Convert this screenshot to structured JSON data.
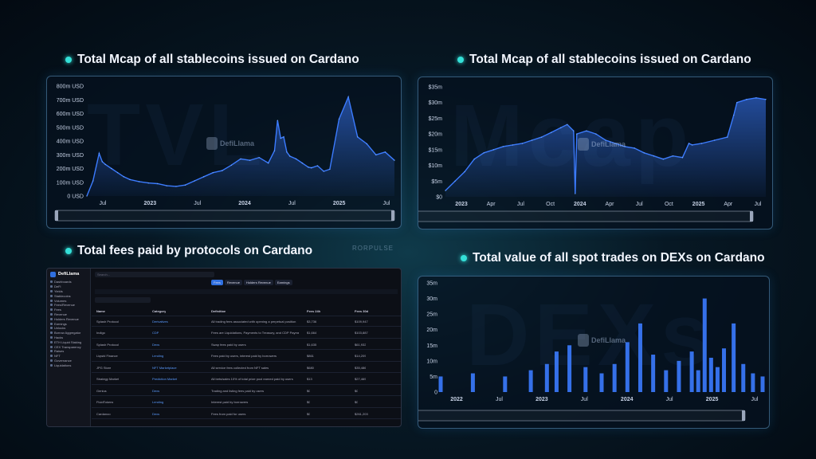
{
  "titles": {
    "tl": "Total Mcap of all stablecoins issued on Cardano",
    "tr": "Total Mcap of all stablecoins issued on Cardano",
    "bl": "Total fees paid by protocols on Cardano",
    "br": "Total value of all spot trades on DEXs on Cardano"
  },
  "watermark": "DefiLlama",
  "center_logo": "RORPULSE",
  "chart_data": [
    {
      "type": "area",
      "y_ticks": [
        "800m USD",
        "700m USD",
        "600m USD",
        "500m USD",
        "400m USD",
        "300m USD",
        "200m USD",
        "100m USD",
        "0 USD"
      ],
      "x_ticks": [
        "Jul",
        "2023",
        "Jul",
        "2024",
        "Jul",
        "2025",
        "Jul"
      ],
      "ylim": [
        0,
        800
      ],
      "x": [
        0,
        2,
        4,
        5,
        6,
        8,
        10,
        12,
        14,
        17,
        20,
        23,
        26,
        29,
        32,
        35,
        38,
        41,
        44,
        47,
        50,
        53,
        56,
        59,
        61,
        62,
        63,
        64,
        65,
        66,
        68,
        70,
        72,
        73,
        75,
        77,
        79,
        82,
        85,
        88,
        91,
        94,
        97,
        100
      ],
      "values": [
        0,
        110,
        310,
        250,
        230,
        200,
        170,
        140,
        120,
        105,
        95,
        90,
        75,
        70,
        80,
        110,
        140,
        170,
        185,
        225,
        270,
        260,
        280,
        240,
        330,
        550,
        420,
        430,
        320,
        290,
        270,
        240,
        210,
        205,
        220,
        180,
        195,
        560,
        720,
        430,
        380,
        300,
        320,
        260
      ],
      "color": "#3b7bff"
    },
    {
      "type": "area",
      "y_ticks": [
        "$35m",
        "$30m",
        "$25m",
        "$20m",
        "$15m",
        "$10m",
        "$5m",
        "$0"
      ],
      "x_ticks": [
        "2023",
        "Apr",
        "Jul",
        "Oct",
        "2024",
        "Apr",
        "Jul",
        "Oct",
        "2025",
        "Apr",
        "Jul"
      ],
      "ylim": [
        0,
        35
      ],
      "x": [
        0,
        3,
        6,
        9,
        12,
        15,
        18,
        21,
        24,
        27,
        30,
        33,
        36,
        38,
        40,
        40.5,
        41,
        44,
        47,
        50,
        53,
        56,
        59,
        62,
        65,
        68,
        71,
        74,
        76,
        77,
        80,
        84,
        88,
        90,
        91,
        94,
        97,
        100
      ],
      "values": [
        2,
        5,
        8,
        12,
        14,
        15,
        16,
        16.5,
        17,
        18,
        19,
        20.5,
        22,
        23,
        21,
        1,
        20,
        21,
        20,
        18,
        17,
        16,
        15.5,
        14,
        13,
        12,
        13,
        12.5,
        17,
        16.5,
        17,
        18,
        19,
        26,
        30,
        31,
        31.5,
        31
      ],
      "color": "#3b7bff"
    },
    {
      "type": "bar",
      "y_ticks": [
        "35m",
        "30m",
        "25m",
        "20m",
        "15m",
        "10m",
        "5m",
        "0"
      ],
      "x_ticks": [
        "2022",
        "Jul",
        "2023",
        "Jul",
        "2024",
        "Jul",
        "2025",
        "Jul"
      ],
      "ylim": [
        0,
        35
      ],
      "x": [
        0,
        10,
        20,
        28,
        33,
        36,
        40,
        45,
        50,
        54,
        58,
        62,
        66,
        70,
        74,
        78,
        80,
        82,
        84,
        86,
        88,
        91,
        94,
        97,
        100
      ],
      "values": [
        5,
        6,
        5,
        7,
        9,
        13,
        15,
        8,
        6,
        9,
        16,
        22,
        12,
        7,
        10,
        13,
        7,
        30,
        11,
        8,
        14,
        22,
        9,
        6,
        5
      ],
      "color": "#3b7bff"
    }
  ],
  "dashboard": {
    "brand": "DefiLlama",
    "search_placeholder": "Search...",
    "tabs": [
      "Fees",
      "Revenue",
      "Holders Revenue",
      "Earnings"
    ],
    "sidebar": [
      "Dashboards",
      "DeFi",
      "Yields",
      "Stablecoins",
      "Volumes",
      "Fees/Revenue",
      "Fees",
      "Revenue",
      "Holders Revenue",
      "Earnings",
      "Unlocks",
      "Borrow Aggregator",
      "Hacks",
      "ETH Liquid Staking",
      "CEX Transparency",
      "Raises",
      "NFT",
      "Governance",
      "Liquidations"
    ],
    "columns": [
      "Name",
      "Category",
      "Definition",
      "Fees 24h",
      "Fees 30d"
    ],
    "rows": [
      {
        "name": "Splash Protocol",
        "category": "Derivatives",
        "definition": "All trading fees associated with opening a perpetual position",
        "f24": "$3,736",
        "f30": "$109,947"
      },
      {
        "name": "Indigo",
        "category": "CDP",
        "definition": "Fees are Liquidations, Payments to Treasury, and CDP Payments to INDY Stakers",
        "f24": "$1,664",
        "f30": "$103,887"
      },
      {
        "name": "Splash Protocol",
        "category": "Dexs",
        "definition": "Swap fees paid by users",
        "f24": "$1,635",
        "f30": "$61,932"
      },
      {
        "name": "Liqwid Finance",
        "category": "Lending",
        "definition": "Fees paid by users, interest paid by borrowers",
        "f24": "$861",
        "f30": "$14,209"
      },
      {
        "name": "JPG Store",
        "category": "NFT Marketplace",
        "definition": "All service fees collected from NFT sales",
        "f24": "$680",
        "f30": "$35,486"
      },
      {
        "name": "Strategy Market",
        "category": "Prediction Market",
        "definition": "All bets/sales 10% of total prize pool earned paid by users",
        "f24": "$13",
        "f30": "$27,469"
      },
      {
        "name": "Genius",
        "category": "Dexs",
        "definition": "Trading and listing fees paid by users",
        "f24": "$0",
        "f30": "$0"
      },
      {
        "name": "FluidTokens",
        "category": "Lending",
        "definition": "Interest paid by borrowers",
        "f24": "$0",
        "f30": "$0"
      },
      {
        "name": "Cardanoo",
        "category": "Dexs",
        "definition": "Fees from paid for users",
        "f24": "$0",
        "f30": "$261,203"
      }
    ]
  }
}
